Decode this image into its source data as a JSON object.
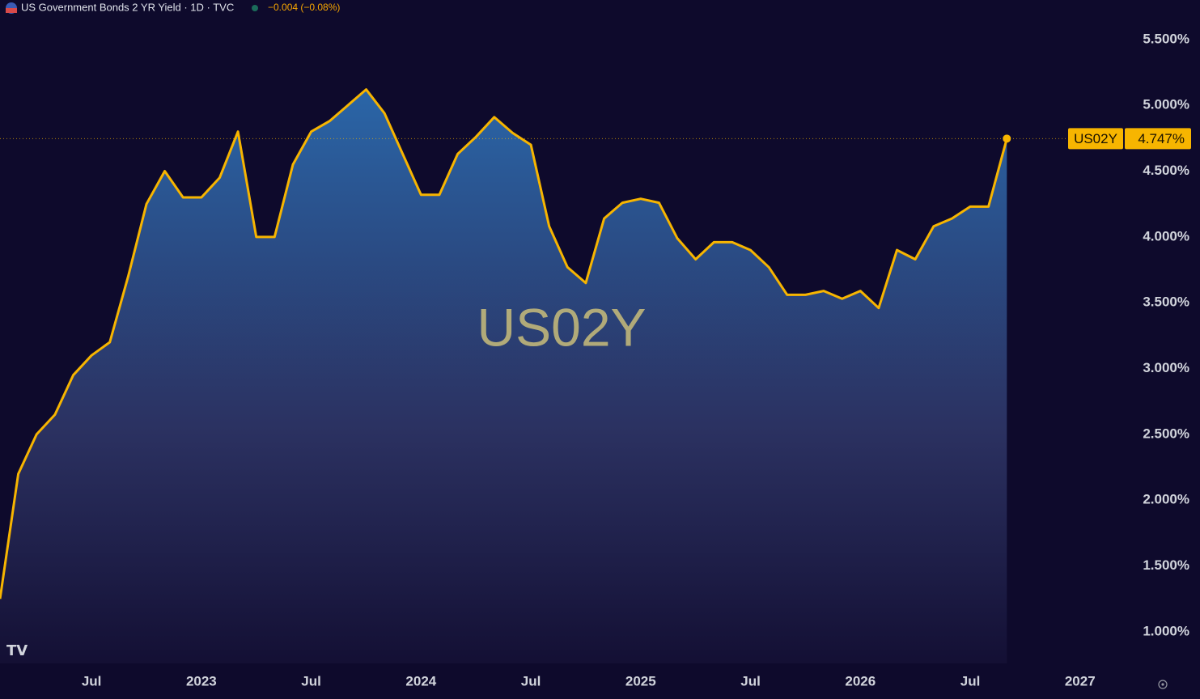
{
  "chart_data": {
    "type": "area",
    "title": "US Government Bonds 2 YR Yield · 1D · TVC",
    "change": "−0.004 (−0.08%)",
    "watermark": "US02Y",
    "x": [
      "2022-02",
      "2022-03",
      "2022-04",
      "2022-05",
      "2022-06",
      "2022-07",
      "2022-08",
      "2022-09",
      "2022-10",
      "2022-11",
      "2022-12",
      "2023-01",
      "2023-02",
      "2023-03",
      "2023-04",
      "2023-05",
      "2023-06",
      "2023-07",
      "2023-08",
      "2023-09",
      "2023-10",
      "2023-11",
      "2023-12",
      "2024-01",
      "2024-02",
      "2024-03",
      "2024-04",
      "2024-05",
      "2024-06",
      "2024-07",
      "2024-08",
      "2024-09",
      "2024-10",
      "2024-11",
      "2024-12",
      "2025-01",
      "2025-02",
      "2025-03",
      "2025-04",
      "2025-05",
      "2025-06",
      "2025-07",
      "2025-08",
      "2025-09",
      "2025-10",
      "2025-11",
      "2025-12",
      "2026-01",
      "2026-02",
      "2026-03",
      "2026-04",
      "2026-05",
      "2026-06",
      "2026-07",
      "2026-08",
      "2026-09"
    ],
    "series": [
      {
        "name": "US02Y",
        "color": "#f7b500",
        "values": [
          1.25,
          2.2,
          2.5,
          2.65,
          2.95,
          3.1,
          3.2,
          3.7,
          4.25,
          4.5,
          4.3,
          4.3,
          4.45,
          4.8,
          4.0,
          4.0,
          4.55,
          4.8,
          4.88,
          5.0,
          5.12,
          4.94,
          4.63,
          4.32,
          4.32,
          4.63,
          4.76,
          4.91,
          4.79,
          4.7,
          4.08,
          3.77,
          3.65,
          4.14,
          4.26,
          4.29,
          4.26,
          3.99,
          3.83,
          3.96,
          3.96,
          3.9,
          3.77,
          3.56,
          3.56,
          3.59,
          3.53,
          3.59,
          3.46,
          3.9,
          3.83,
          4.08,
          4.14,
          4.23,
          4.23,
          4.747
        ],
        "value_labels": [
          null,
          null,
          null,
          null,
          null,
          null,
          null,
          null,
          null,
          null,
          null,
          null,
          null,
          null,
          null,
          null,
          null,
          null,
          null,
          null,
          null,
          null,
          null,
          null,
          null,
          null,
          null,
          null,
          null,
          null,
          null,
          null,
          null,
          null,
          null,
          null,
          null,
          null,
          null,
          null,
          null,
          null,
          null,
          null,
          null,
          null,
          null,
          null,
          null,
          null,
          null,
          null,
          null,
          null,
          null,
          "4.747%"
        ]
      }
    ],
    "xlim": [
      "2022-02",
      "2027-03"
    ],
    "xticks": [
      {
        "value": "2022-07",
        "label": "Jul"
      },
      {
        "value": "2023-01",
        "label": "2023"
      },
      {
        "value": "2023-07",
        "label": "Jul"
      },
      {
        "value": "2024-01",
        "label": "2024"
      },
      {
        "value": "2024-07",
        "label": "Jul"
      },
      {
        "value": "2025-01",
        "label": "2025"
      },
      {
        "value": "2025-07",
        "label": "Jul"
      },
      {
        "value": "2026-01",
        "label": "2026"
      },
      {
        "value": "2026-07",
        "label": "Jul"
      },
      {
        "value": "2027-01",
        "label": "2027"
      }
    ],
    "ylim": [
      0.76,
      5.8
    ],
    "yticks": [
      {
        "value": 1.0,
        "label": "1.000%"
      },
      {
        "value": 1.5,
        "label": "1.500%"
      },
      {
        "value": 2.0,
        "label": "2.000%"
      },
      {
        "value": 2.5,
        "label": "2.500%"
      },
      {
        "value": 3.0,
        "label": "3.000%"
      },
      {
        "value": 3.5,
        "label": "3.500%"
      },
      {
        "value": 4.0,
        "label": "4.000%"
      },
      {
        "value": 4.5,
        "label": "4.500%"
      },
      {
        "value": 5.0,
        "label": "5.000%"
      },
      {
        "value": 5.5,
        "label": "5.500%"
      }
    ]
  }
}
